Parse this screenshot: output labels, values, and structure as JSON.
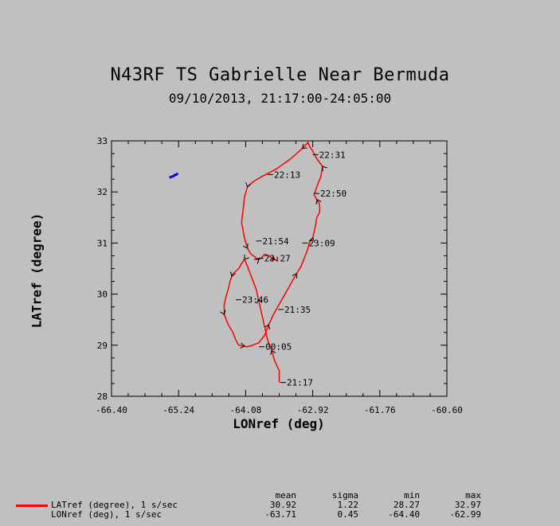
{
  "chart_data": {
    "type": "line",
    "title": "N43RF TS Gabrielle Near Bermuda",
    "subtitle": "09/10/2013, 21:17:00-24:05:00",
    "xlabel": "LONref (deg)",
    "ylabel": "LATref (degree)",
    "xlim": [
      -66.4,
      -60.6
    ],
    "ylim": [
      28,
      33
    ],
    "x_ticks": [
      "-66.40",
      "-65.24",
      "-64.08",
      "-62.92",
      "-61.76",
      "-60.60"
    ],
    "y_ticks": [
      "28",
      "29",
      "30",
      "31",
      "32",
      "33"
    ],
    "series": [
      {
        "color": "#ff0000",
        "x": [
          -63.5,
          -63.5,
          -63.58,
          -63.63,
          -63.7,
          -63.74,
          -63.78,
          -63.82,
          -63.86,
          -63.9,
          -63.95,
          -64.0,
          -64.05,
          -64.1,
          -64.15,
          -64.2,
          -64.25,
          -64.3,
          -64.32,
          -64.35,
          -64.38,
          -64.42,
          -64.45,
          -64.45,
          -64.38,
          -64.3,
          -64.25,
          -64.2,
          -64.1,
          -64.05,
          -63.98,
          -63.85,
          -63.75,
          -63.68,
          -63.6,
          -63.5,
          -63.4,
          -63.3,
          -63.2,
          -63.12,
          -63.05,
          -63.0,
          -62.98,
          -62.92,
          -62.88,
          -62.85,
          -62.8,
          -62.8,
          -62.85,
          -62.9,
          -62.88,
          -62.85,
          -62.78,
          -62.75,
          -62.85,
          -62.92,
          -62.98,
          -63.0,
          -63.1,
          -63.3,
          -63.55,
          -63.8,
          -63.95,
          -64.05,
          -64.1,
          -64.12,
          -64.15,
          -64.1,
          -64.05,
          -64.0,
          -63.95,
          -63.92,
          -63.9,
          -63.85,
          -63.8,
          -63.75,
          -63.68,
          -63.62,
          -63.58,
          -63.55,
          -63.52
        ],
        "y": [
          28.27,
          28.5,
          28.7,
          28.9,
          29.1,
          29.3,
          29.5,
          29.7,
          29.9,
          30.1,
          30.25,
          30.4,
          30.55,
          30.68,
          30.6,
          30.5,
          30.45,
          30.4,
          30.35,
          30.25,
          30.1,
          29.95,
          29.8,
          29.6,
          29.4,
          29.25,
          29.1,
          29.0,
          28.98,
          28.97,
          28.99,
          29.05,
          29.2,
          29.4,
          29.6,
          29.8,
          30.0,
          30.2,
          30.4,
          30.55,
          30.75,
          30.9,
          31.0,
          31.1,
          31.3,
          31.5,
          31.6,
          31.75,
          31.85,
          31.95,
          32.0,
          32.1,
          32.3,
          32.5,
          32.65,
          32.8,
          32.9,
          32.97,
          32.85,
          32.65,
          32.45,
          32.3,
          32.2,
          32.1,
          31.9,
          31.7,
          31.4,
          31.1,
          30.9,
          30.8,
          30.75,
          30.73,
          30.7,
          30.68,
          30.72,
          30.78,
          30.75,
          30.7,
          30.68,
          30.66,
          30.7
        ]
      },
      {
        "color": "#0000ff",
        "x": [
          -65.4,
          -65.35,
          -65.3,
          -65.25
        ],
        "y": [
          32.28,
          32.3,
          32.33,
          32.36
        ]
      }
    ],
    "annotations": [
      {
        "text": "22:31",
        "x": -62.92,
        "y": 32.73
      },
      {
        "text": "22:13",
        "x": -63.7,
        "y": 32.34
      },
      {
        "text": "22:50",
        "x": -62.9,
        "y": 31.97
      },
      {
        "text": "21:54",
        "x": -63.9,
        "y": 31.04
      },
      {
        "text": "23:09",
        "x": -63.1,
        "y": 31.0
      },
      {
        "text": "23:27",
        "x": -63.87,
        "y": 30.7
      },
      {
        "text": "23:46",
        "x": -64.25,
        "y": 29.89
      },
      {
        "text": "21:35",
        "x": -63.52,
        "y": 29.7
      },
      {
        "text": "00:05",
        "x": -63.85,
        "y": 28.97
      },
      {
        "text": "21:17",
        "x": -63.48,
        "y": 28.27
      }
    ]
  },
  "legend": {
    "header": [
      "mean",
      "sigma",
      "min",
      "max"
    ],
    "rows": [
      {
        "label": "LATref (degree), 1 s/sec",
        "color": "#ff0000",
        "mean": "30.92",
        "sigma": "1.22",
        "min": "28.27",
        "max": "32.97"
      },
      {
        "label": "LONref (deg), 1 s/sec",
        "color": "",
        "mean": "-63.71",
        "sigma": "0.45",
        "min": "-64.40",
        "max": "-62.99"
      }
    ]
  }
}
